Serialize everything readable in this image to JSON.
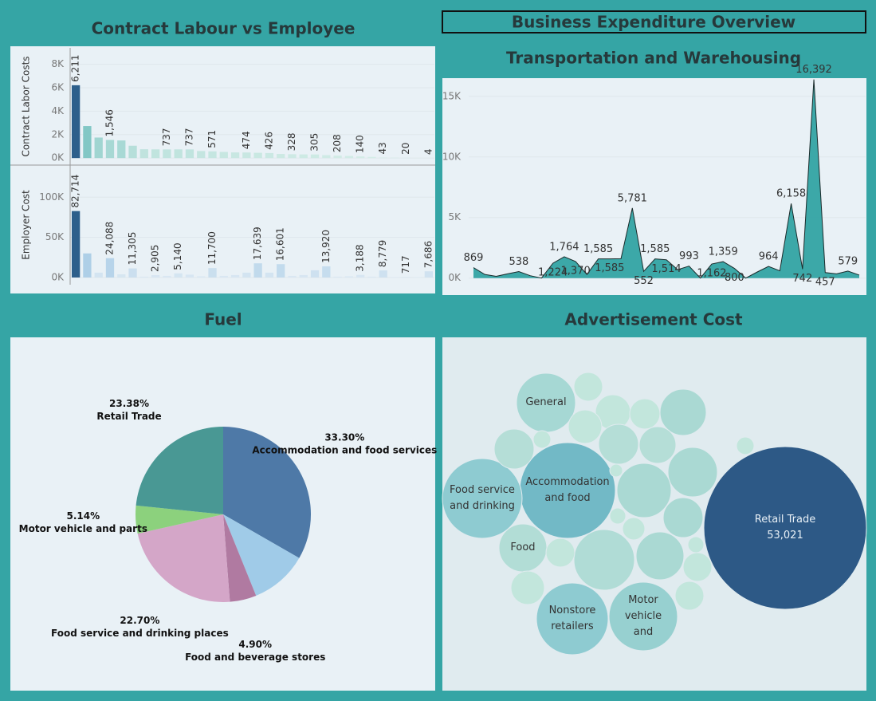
{
  "title": "Business Expenditure Overview",
  "chart_data": [
    {
      "type": "bar",
      "title": "Contract Labour vs Employee",
      "panels": [
        {
          "y_label": "Contract Labor Costs",
          "categories": [
            null,
            null,
            null,
            null,
            null,
            null,
            null,
            null,
            null,
            null,
            null,
            null,
            null,
            null,
            null,
            null,
            null,
            null,
            null,
            null,
            null,
            null,
            null,
            null,
            null,
            null,
            null,
            null,
            null,
            null,
            null,
            null
          ],
          "values": [
            6211,
            2730,
            1750,
            1546,
            1500,
            1050,
            750,
            740,
            737,
            740,
            737,
            600,
            571,
            520,
            480,
            474,
            450,
            426,
            350,
            328,
            310,
            305,
            250,
            208,
            180,
            140,
            100,
            43,
            30,
            20,
            10,
            4
          ],
          "value_labels": [
            "6,211",
            null,
            null,
            "1,546",
            null,
            null,
            null,
            null,
            "737",
            null,
            "737",
            null,
            "571",
            null,
            null,
            "474",
            null,
            "426",
            null,
            "328",
            null,
            "305",
            null,
            "208",
            null,
            "140",
            null,
            "43",
            null,
            "20",
            null,
            "4"
          ],
          "ylim": [
            -600,
            9400
          ],
          "yticks": [
            {
              "value": 0,
              "label": "0K"
            },
            {
              "value": 2000,
              "label": "2K"
            },
            {
              "value": 4000,
              "label": "4K"
            },
            {
              "value": 6000,
              "label": "6K"
            },
            {
              "value": 8000,
              "label": "8K"
            }
          ],
          "color_range": [
            "#d7eee8",
            "#76c2c0",
            "#2d5f8b"
          ]
        },
        {
          "y_label": "Employer Cost",
          "categories": [
            null,
            null,
            null,
            null,
            null,
            null,
            null,
            null,
            null,
            null,
            null,
            null,
            null,
            null,
            null,
            null,
            null,
            null,
            null,
            null,
            null,
            null,
            null,
            null,
            null,
            null,
            null,
            null,
            null,
            null,
            null,
            null
          ],
          "values": [
            82714,
            30000,
            6000,
            24088,
            4000,
            11305,
            1000,
            2905,
            2000,
            5140,
            3500,
            1500,
            11700,
            2000,
            3000,
            6000,
            17639,
            6000,
            16601,
            2000,
            3000,
            9000,
            13920,
            1000,
            1500,
            3188,
            1000,
            8779,
            500,
            717,
            300,
            7686
          ],
          "value_labels": [
            "82,714",
            null,
            null,
            "24,088",
            null,
            "11,305",
            null,
            "2,905",
            null,
            "5,140",
            null,
            null,
            "11,700",
            null,
            null,
            null,
            "17,639",
            null,
            "16,601",
            null,
            null,
            null,
            "13,920",
            null,
            null,
            "3,188",
            null,
            "8,779",
            null,
            "717",
            null,
            "7,686"
          ],
          "ylim": [
            -9000,
            140000
          ],
          "yticks": [
            {
              "value": 0,
              "label": "0K"
            },
            {
              "value": 50000,
              "label": "50K"
            },
            {
              "value": 100000,
              "label": "100K"
            }
          ],
          "color_range": [
            "#dce9f3",
            "#9cc5e3",
            "#2d5f8b"
          ]
        }
      ],
      "grid": true
    },
    {
      "type": "area",
      "title": "Transportation and Warehousing",
      "categories": [
        null,
        null,
        null,
        null,
        null,
        null,
        null,
        null,
        null,
        null,
        null,
        null,
        null,
        null,
        null,
        null,
        null,
        null,
        null,
        null,
        null,
        null,
        null,
        null,
        null,
        null,
        null,
        null,
        null,
        null,
        null,
        null,
        null,
        null,
        null
      ],
      "values": [
        869,
        300,
        150,
        350,
        538,
        200,
        0,
        1224,
        1764,
        1370,
        300,
        1585,
        1585,
        1600,
        5781,
        552,
        1585,
        1514,
        700,
        993,
        0,
        1162,
        1359,
        800,
        0,
        500,
        964,
        600,
        6158,
        742,
        16392,
        457,
        350,
        579,
        250
      ],
      "value_labels": [
        "869",
        null,
        null,
        null,
        "538",
        null,
        null,
        "1,224",
        "1,764",
        "1,370",
        null,
        "1,585",
        "1,585",
        null,
        "5,781",
        "552",
        "1,585",
        "1,514",
        null,
        "993",
        null,
        "1,162",
        "1,359",
        "800",
        null,
        null,
        "964",
        null,
        "6,158",
        "742",
        "16,392",
        "457",
        null,
        "579",
        null
      ],
      "ylim": [
        -1400,
        16500
      ],
      "yticks": [
        {
          "value": 0,
          "label": "0K"
        },
        {
          "value": 5000,
          "label": "5K"
        },
        {
          "value": 10000,
          "label": "10K"
        },
        {
          "value": 15000,
          "label": "15K"
        }
      ],
      "color": "#33a3a3",
      "line_color": "#1b2b2b",
      "grid": true
    },
    {
      "type": "pie",
      "title": "Fuel",
      "categories": [
        "Accommodation and food services",
        null,
        "Food and beverage stores",
        "Food service and drinking places",
        "Motor vehicle and parts",
        "Retail Trade"
      ],
      "values": [
        33.3,
        10.58,
        4.9,
        22.7,
        5.14,
        23.38
      ],
      "value_labels": [
        "33.30%",
        null,
        "4.90%",
        "22.70%",
        "5.14%",
        "23.38%"
      ],
      "colors": [
        "#4e79a7",
        "#a0cbe8",
        "#b07aa1",
        "#d4a6c8",
        "#8cd17d",
        "#499894"
      ]
    },
    {
      "type": "bubble",
      "title": "Advertisement Cost",
      "names": [
        "Retail Trade",
        "Accommodation and food",
        "Food service and drinking",
        "Nonstore retailers",
        "Motor vehicle and",
        "General",
        "Food",
        null,
        null,
        null,
        null,
        null,
        null,
        null,
        null,
        null,
        null,
        null,
        null,
        null,
        null,
        null,
        null,
        null,
        null,
        null,
        null,
        null,
        null,
        null
      ],
      "values": [
        53021,
        18350,
        12740,
        10320,
        9420,
        6980,
        4590,
        1651,
        2467,
        1840,
        4286,
        2247,
        3185,
        2696,
        3185,
        617,
        4897,
        617,
        5891,
        326,
        3185,
        510,
        999,
        4586,
        7358,
        1651,
        510,
        1651,
        2247,
        1651
      ],
      "value_labels": [
        "53,021",
        null,
        null,
        null,
        null,
        null,
        null,
        null,
        null,
        null,
        null,
        null,
        null,
        null,
        null,
        null,
        null,
        null,
        null,
        null,
        null,
        null,
        null,
        null,
        null,
        null,
        null,
        null,
        null,
        null
      ],
      "colors": [
        "#2d5986",
        "#72b9c6",
        "#8ecbd1",
        "#8ecbd1",
        "#97d0d0",
        "#a6d8d4",
        "#b2ddd6",
        "#c2e6dc",
        "#c2e6dc",
        "#c2e6dc",
        "#aad9d3",
        "#c2e6dc",
        "#b5ded7",
        "#b5ded7",
        "#b5ded7",
        "#c2e6dc",
        "#aad9d3",
        "#c2e6dc",
        "#aad9d3",
        "#c2e6dc",
        "#aad9d3",
        "#c2e6dc",
        "#c2e6dc",
        "#aad9d3",
        "#b0dcd6",
        "#c2e6dc",
        "#c2e6dc",
        "#c2e6dc",
        "#c2e6dc",
        "#c2e6dc"
      ]
    }
  ]
}
